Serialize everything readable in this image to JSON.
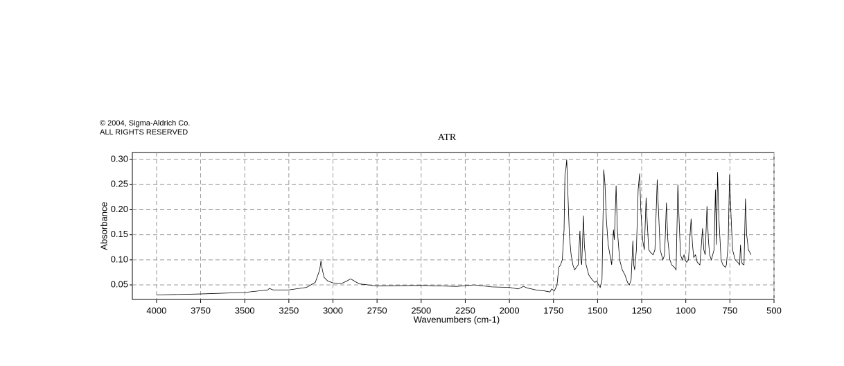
{
  "copyright": "© 2004, Sigma-Aldrich Co.",
  "rights": "ALL RIGHTS RESERVED",
  "chart_data": {
    "type": "line",
    "title": "ATR",
    "xlabel": "Wavenumbers (cm-1)",
    "ylabel": "Absorbance",
    "color": "#000000",
    "grid": true,
    "xlim": [
      4137,
      500
    ],
    "ylim": [
      0.021,
      0.314
    ],
    "xticks": [
      4000,
      3750,
      3500,
      3250,
      3000,
      2750,
      2500,
      2250,
      2000,
      1750,
      1500,
      1250,
      1000,
      750,
      500
    ],
    "yticks": [
      0.05,
      {
        "value": 0.1,
        "label": "0.10"
      },
      0.15,
      {
        "value": 0.2,
        "label": "0.20"
      },
      0.25,
      {
        "value": 0.3,
        "label": "0.30"
      }
    ],
    "x": [
      4000,
      3750,
      3500,
      3370,
      3360,
      3340,
      3250,
      3150,
      3100,
      3085,
      3075,
      3068,
      3060,
      3050,
      3030,
      3000,
      2950,
      2920,
      2900,
      2880,
      2850,
      2750,
      2500,
      2300,
      2200,
      2100,
      2000,
      1950,
      1920,
      1900,
      1850,
      1800,
      1770,
      1760,
      1745,
      1730,
      1720,
      1710,
      1700,
      1690,
      1685,
      1680,
      1675,
      1670,
      1660,
      1650,
      1640,
      1630,
      1610,
      1600,
      1595,
      1590,
      1580,
      1575,
      1565,
      1550,
      1530,
      1515,
      1505,
      1495,
      1485,
      1475,
      1465,
      1458,
      1450,
      1440,
      1425,
      1420,
      1410,
      1405,
      1395,
      1388,
      1375,
      1360,
      1345,
      1330,
      1320,
      1310,
      1300,
      1295,
      1290,
      1280,
      1270,
      1262,
      1255,
      1245,
      1235,
      1225,
      1218,
      1210,
      1200,
      1185,
      1175,
      1162,
      1155,
      1145,
      1130,
      1120,
      1110,
      1102,
      1090,
      1080,
      1065,
      1055,
      1045,
      1038,
      1030,
      1020,
      1010,
      1005,
      995,
      985,
      970,
      962,
      955,
      945,
      935,
      920,
      905,
      898,
      890,
      880,
      872,
      865,
      855,
      840,
      832,
      826,
      820,
      812,
      800,
      790,
      775,
      770,
      760,
      752,
      745,
      735,
      720,
      705,
      695,
      690,
      685,
      680,
      670,
      662,
      655,
      645,
      630
    ],
    "values": [
      0.03,
      0.032,
      0.035,
      0.04,
      0.043,
      0.04,
      0.04,
      0.045,
      0.055,
      0.07,
      0.08,
      0.098,
      0.08,
      0.065,
      0.058,
      0.054,
      0.053,
      0.058,
      0.062,
      0.058,
      0.052,
      0.048,
      0.049,
      0.047,
      0.05,
      0.046,
      0.045,
      0.042,
      0.047,
      0.044,
      0.04,
      0.038,
      0.036,
      0.042,
      0.038,
      0.05,
      0.085,
      0.09,
      0.1,
      0.16,
      0.27,
      0.28,
      0.3,
      0.25,
      0.15,
      0.11,
      0.09,
      0.08,
      0.09,
      0.158,
      0.1,
      0.09,
      0.188,
      0.13,
      0.09,
      0.07,
      0.06,
      0.055,
      0.058,
      0.05,
      0.045,
      0.06,
      0.28,
      0.25,
      0.18,
      0.13,
      0.1,
      0.09,
      0.16,
      0.14,
      0.248,
      0.16,
      0.1,
      0.08,
      0.07,
      0.055,
      0.05,
      0.06,
      0.138,
      0.09,
      0.08,
      0.12,
      0.24,
      0.272,
      0.2,
      0.14,
      0.12,
      0.224,
      0.17,
      0.12,
      0.115,
      0.11,
      0.12,
      0.26,
      0.2,
      0.12,
      0.1,
      0.11,
      0.214,
      0.14,
      0.1,
      0.09,
      0.085,
      0.08,
      0.25,
      0.18,
      0.11,
      0.1,
      0.11,
      0.1,
      0.095,
      0.1,
      0.182,
      0.13,
      0.105,
      0.11,
      0.095,
      0.09,
      0.163,
      0.12,
      0.11,
      0.207,
      0.14,
      0.11,
      0.1,
      0.12,
      0.24,
      0.13,
      0.275,
      0.18,
      0.1,
      0.09,
      0.085,
      0.09,
      0.13,
      0.27,
      0.2,
      0.12,
      0.1,
      0.095,
      0.09,
      0.13,
      0.1,
      0.092,
      0.09,
      0.222,
      0.15,
      0.12,
      0.11
    ]
  }
}
